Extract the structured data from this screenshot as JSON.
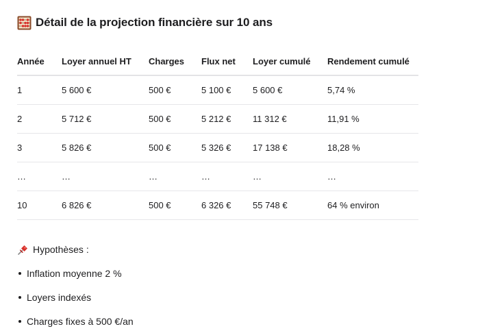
{
  "heading": {
    "icon": "abacus-icon",
    "text": "Détail de la projection financière sur 10 ans"
  },
  "table": {
    "headers": [
      "Année",
      "Loyer annuel HT",
      "Charges",
      "Flux net",
      "Loyer cumulé",
      "Rendement cumulé"
    ],
    "rows": [
      [
        "1",
        "5 600 €",
        "500 €",
        "5 100 €",
        "5 600 €",
        "5,74 %"
      ],
      [
        "2",
        "5 712 €",
        "500 €",
        "5 212 €",
        "11 312 €",
        "11,91 %"
      ],
      [
        "3",
        "5 826 €",
        "500 €",
        "5 326 €",
        "17 138 €",
        "18,28 %"
      ],
      [
        "…",
        "…",
        "…",
        "…",
        "…",
        "…"
      ],
      [
        "10",
        "6 826 €",
        "500 €",
        "6 326 €",
        "55 748 €",
        "64 % environ"
      ]
    ]
  },
  "hypotheses": {
    "icon": "pushpin-icon",
    "title": "Hypothèses :",
    "items": [
      "Inflation moyenne 2 %",
      "Loyers indexés",
      "Charges fixes à 500 €/an"
    ]
  },
  "colors": {
    "text": "#1d1d1f",
    "border": "#e3e3e6",
    "pin": "#e0342f"
  }
}
